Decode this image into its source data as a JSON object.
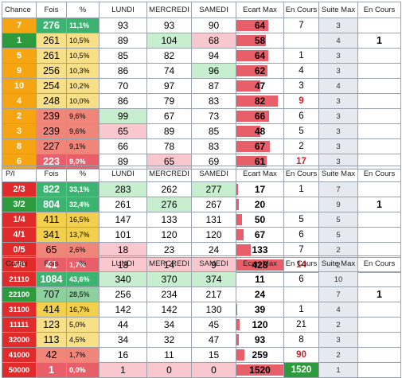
{
  "headers": [
    "",
    "Fois",
    "%",
    "LUNDI",
    "MERCREDI",
    "SAMEDI",
    "Ecart Max",
    "En Cours",
    "Suite Max",
    "En Cours"
  ],
  "colors": {
    "label_orange": "#f5a511",
    "label_green": "#2e9a3e",
    "label_yellow": "#f2d04d",
    "label_red": "#e12a2a",
    "fois_green": "#3cb371",
    "fois_yellow": "#f8e089",
    "fois_red": "#f0857a",
    "cell_green": "#c7efcf",
    "cell_red": "#f9c7ce",
    "ecart_bar": "#e85f6a",
    "suite_bg": "#e6eaf0"
  },
  "tables": [
    {
      "title": "Chance",
      "rows": [
        {
          "label": "7",
          "fois": "276",
          "pct": "11,1%",
          "lundi": "93",
          "mercredi": "93",
          "samedi": "90",
          "ecart": "64",
          "ecart_frac": 0.68,
          "encours": "7",
          "suite": "3",
          "encours2": ""
        },
        {
          "label": "1",
          "fois": "261",
          "pct": "10,5%",
          "lundi": "89",
          "mercredi": "104",
          "samedi": "68",
          "ecart": "58",
          "ecart_frac": 0.62,
          "encours": "",
          "suite": "4",
          "encours2": "1"
        },
        {
          "label": "5",
          "fois": "261",
          "pct": "10,5%",
          "lundi": "85",
          "mercredi": "82",
          "samedi": "94",
          "ecart": "64",
          "ecart_frac": 0.68,
          "encours": "1",
          "suite": "3",
          "encours2": ""
        },
        {
          "label": "9",
          "fois": "256",
          "pct": "10,3%",
          "lundi": "86",
          "mercredi": "74",
          "samedi": "96",
          "ecart": "62",
          "ecart_frac": 0.66,
          "encours": "4",
          "suite": "3",
          "encours2": ""
        },
        {
          "label": "10",
          "fois": "254",
          "pct": "10,2%",
          "lundi": "70",
          "mercredi": "97",
          "samedi": "87",
          "ecart": "47",
          "ecart_frac": 0.5,
          "encours": "3",
          "suite": "4",
          "encours2": ""
        },
        {
          "label": "4",
          "fois": "248",
          "pct": "10,0%",
          "lundi": "86",
          "mercredi": "79",
          "samedi": "83",
          "ecart": "82",
          "ecart_frac": 0.88,
          "encours": "9",
          "suite": "3",
          "encours2": ""
        },
        {
          "label": "2",
          "fois": "239",
          "pct": "9,6%",
          "lundi": "99",
          "mercredi": "67",
          "samedi": "73",
          "ecart": "66",
          "ecart_frac": 0.7,
          "encours": "6",
          "suite": "3",
          "encours2": ""
        },
        {
          "label": "3",
          "fois": "239",
          "pct": "9,6%",
          "lundi": "65",
          "mercredi": "89",
          "samedi": "85",
          "ecart": "48",
          "ecart_frac": 0.51,
          "encours": "5",
          "suite": "3",
          "encours2": ""
        },
        {
          "label": "8",
          "fois": "227",
          "pct": "9,1%",
          "lundi": "66",
          "mercredi": "78",
          "samedi": "83",
          "ecart": "67",
          "ecart_frac": 0.72,
          "encours": "2",
          "suite": "3",
          "encours2": ""
        },
        {
          "label": "6",
          "fois": "223",
          "pct": "9,0%",
          "lundi": "89",
          "mercredi": "65",
          "samedi": "69",
          "ecart": "61",
          "ecart_frac": 0.65,
          "encours": "17",
          "suite": "3",
          "encours2": ""
        }
      ]
    },
    {
      "title": "P/I",
      "rows": [
        {
          "label": "2/3",
          "fois": "822",
          "pct": "33,1%",
          "lundi": "283",
          "mercredi": "262",
          "samedi": "277",
          "ecart": "17",
          "ecart_frac": 0.04,
          "encours": "1",
          "suite": "7",
          "encours2": ""
        },
        {
          "label": "3/2",
          "fois": "804",
          "pct": "32,4%",
          "lundi": "261",
          "mercredi": "276",
          "samedi": "267",
          "ecart": "20",
          "ecart_frac": 0.05,
          "encours": "",
          "suite": "9",
          "encours2": "1"
        },
        {
          "label": "1/4",
          "fois": "411",
          "pct": "16,5%",
          "lundi": "147",
          "mercredi": "133",
          "samedi": "131",
          "ecart": "50",
          "ecart_frac": 0.12,
          "encours": "5",
          "suite": "5",
          "encours2": ""
        },
        {
          "label": "4/1",
          "fois": "341",
          "pct": "13,7%",
          "lundi": "101",
          "mercredi": "120",
          "samedi": "120",
          "ecart": "67",
          "ecart_frac": 0.16,
          "encours": "6",
          "suite": "5",
          "encours2": ""
        },
        {
          "label": "0/5",
          "fois": "65",
          "pct": "2,6%",
          "lundi": "18",
          "mercredi": "23",
          "samedi": "24",
          "ecart": "133",
          "ecart_frac": 0.31,
          "encours": "7",
          "suite": "2",
          "encours2": ""
        },
        {
          "label": "5/0",
          "fois": "41",
          "pct": "1,7%",
          "lundi": "18",
          "mercredi": "14",
          "samedi": "9",
          "ecart": "428",
          "ecart_frac": 1.0,
          "encours": "14",
          "suite": "2",
          "encours2": ""
        }
      ]
    },
    {
      "title": "Combi",
      "rows": [
        {
          "label": "21110",
          "fois": "1084",
          "pct": "43,6%",
          "lundi": "340",
          "mercredi": "370",
          "samedi": "374",
          "ecart": "11",
          "ecart_frac": 0.0,
          "encours": "6",
          "suite": "10",
          "encours2": ""
        },
        {
          "label": "22100",
          "fois": "707",
          "pct": "28,5%",
          "lundi": "256",
          "mercredi": "234",
          "samedi": "217",
          "ecart": "24",
          "ecart_frac": 0.0,
          "encours": "",
          "suite": "7",
          "encours2": "1"
        },
        {
          "label": "31100",
          "fois": "414",
          "pct": "16,7%",
          "lundi": "142",
          "mercredi": "142",
          "samedi": "130",
          "ecart": "39",
          "ecart_frac": 0.01,
          "encours": "1",
          "suite": "4",
          "encours2": ""
        },
        {
          "label": "11111",
          "fois": "123",
          "pct": "5,0%",
          "lundi": "44",
          "mercredi": "34",
          "samedi": "45",
          "ecart": "120",
          "ecart_frac": 0.07,
          "encours": "21",
          "suite": "2",
          "encours2": ""
        },
        {
          "label": "32000",
          "fois": "113",
          "pct": "4,5%",
          "lundi": "34",
          "mercredi": "32",
          "samedi": "47",
          "ecart": "93",
          "ecart_frac": 0.05,
          "encours": "8",
          "suite": "3",
          "encours2": ""
        },
        {
          "label": "41000",
          "fois": "42",
          "pct": "1,7%",
          "lundi": "16",
          "mercredi": "11",
          "samedi": "15",
          "ecart": "259",
          "ecart_frac": 0.17,
          "encours": "90",
          "suite": "2",
          "encours2": ""
        },
        {
          "label": "50000",
          "fois": "1",
          "pct": "0,0%",
          "lundi": "1",
          "mercredi": "0",
          "samedi": "0",
          "ecart": "1520",
          "ecart_frac": 1.0,
          "encours": "1520",
          "suite": "1",
          "encours2": ""
        }
      ]
    }
  ]
}
